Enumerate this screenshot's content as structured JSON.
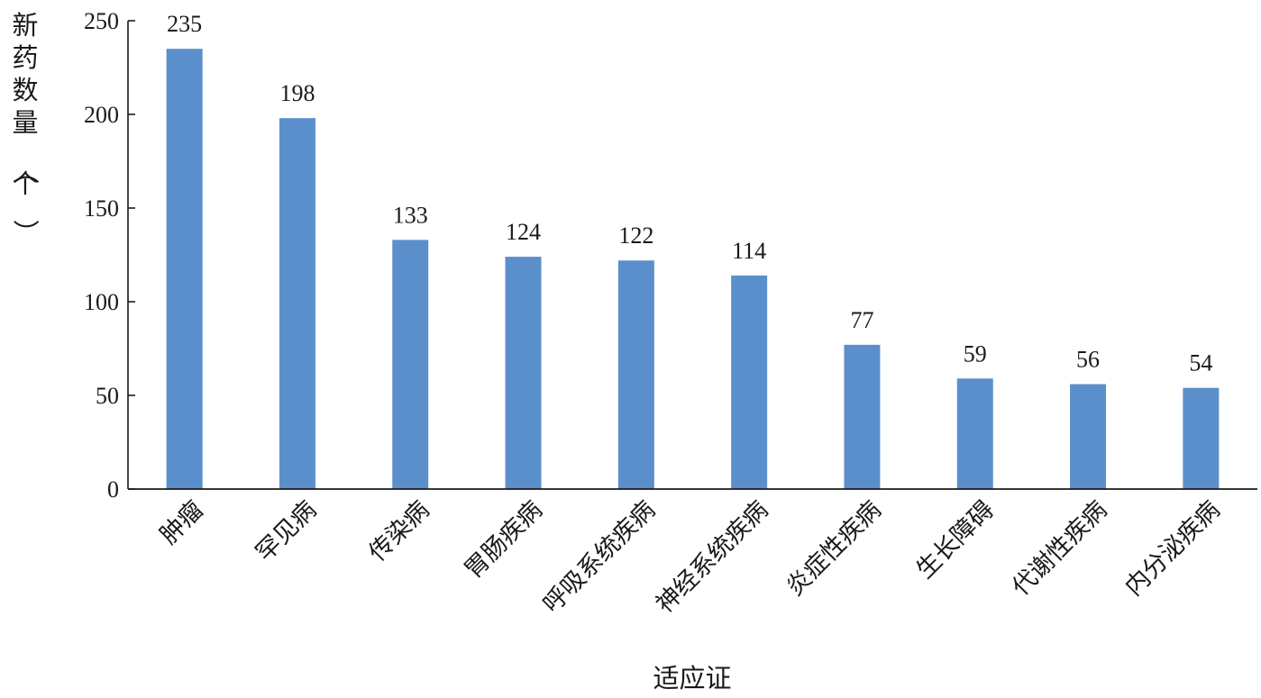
{
  "chart_data": {
    "type": "bar",
    "title": "",
    "xlabel": "适应证",
    "ylabel": "新药数量（个）",
    "ylim": [
      0,
      250
    ],
    "yticks": [
      0,
      50,
      100,
      150,
      200,
      250
    ],
    "grid": false,
    "legend": "none",
    "bar_color": "#5b8fcc",
    "categories": [
      "肿瘤",
      "罕见病",
      "传染病",
      "胃肠疾病",
      "呼吸系统疾病",
      "神经系统疾病",
      "炎症性疾病",
      "生长障碍",
      "代谢性疾病",
      "内分泌疾病"
    ],
    "values": [
      235,
      198,
      133,
      124,
      122,
      114,
      77,
      59,
      56,
      54
    ]
  }
}
